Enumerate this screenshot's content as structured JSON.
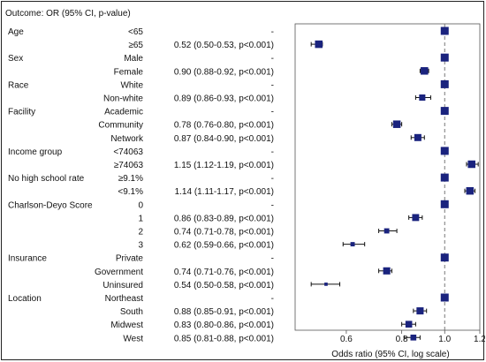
{
  "chart_data": {
    "type": "forest",
    "header": "Outcome: OR (95% CI, p-value)",
    "xlabel": "Odds ratio (95% CI, log scale)",
    "x_scale": "log",
    "xlim": [
      0.46,
      1.2
    ],
    "xticks": [
      0.6,
      0.8,
      1.0,
      1.2
    ],
    "xtick_labels": [
      "0.6",
      "0.8",
      "1.0",
      "1.2"
    ],
    "reference_line": 1.0,
    "reference_style": "dashed",
    "marker_color": "#1a237e",
    "groups": [
      {
        "name": "Age",
        "rows": [
          {
            "level": "<65",
            "text": "-",
            "or": 1.0,
            "lo": 1.0,
            "hi": 1.0,
            "reference": true
          },
          {
            "level": "≥65",
            "text": "0.52 (0.50-0.53, p<0.001)",
            "or": 0.52,
            "lo": 0.5,
            "hi": 0.53
          }
        ]
      },
      {
        "name": "Sex",
        "rows": [
          {
            "level": "Male",
            "text": "-",
            "or": 1.0,
            "lo": 1.0,
            "hi": 1.0,
            "reference": true
          },
          {
            "level": "Female",
            "text": "0.90 (0.88-0.92, p<0.001)",
            "or": 0.9,
            "lo": 0.88,
            "hi": 0.92
          }
        ]
      },
      {
        "name": "Race",
        "rows": [
          {
            "level": "White",
            "text": "-",
            "or": 1.0,
            "lo": 1.0,
            "hi": 1.0,
            "reference": true
          },
          {
            "level": "Non-white",
            "text": "0.89 (0.86-0.93, p<0.001)",
            "or": 0.89,
            "lo": 0.86,
            "hi": 0.93
          }
        ]
      },
      {
        "name": "Facility",
        "rows": [
          {
            "level": "Academic",
            "text": "-",
            "or": 1.0,
            "lo": 1.0,
            "hi": 1.0,
            "reference": true
          },
          {
            "level": "Community",
            "text": "0.78 (0.76-0.80, p<0.001)",
            "or": 0.78,
            "lo": 0.76,
            "hi": 0.8
          },
          {
            "level": "Network",
            "text": "0.87 (0.84-0.90, p<0.001)",
            "or": 0.87,
            "lo": 0.84,
            "hi": 0.9
          }
        ]
      },
      {
        "name": "Income group",
        "rows": [
          {
            "level": "<74063",
            "text": "-",
            "or": 1.0,
            "lo": 1.0,
            "hi": 1.0,
            "reference": true
          },
          {
            "level": "≥74063",
            "text": "1.15 (1.12-1.19, p<0.001)",
            "or": 1.15,
            "lo": 1.12,
            "hi": 1.19
          }
        ]
      },
      {
        "name": "No high school rate",
        "rows": [
          {
            "level": "≥9.1%",
            "text": "-",
            "or": 1.0,
            "lo": 1.0,
            "hi": 1.0,
            "reference": true
          },
          {
            "level": "<9.1%",
            "text": "1.14 (1.11-1.17, p<0.001)",
            "or": 1.14,
            "lo": 1.11,
            "hi": 1.17
          }
        ]
      },
      {
        "name": "Charlson-Deyo Score",
        "rows": [
          {
            "level": "0",
            "text": "-",
            "or": 1.0,
            "lo": 1.0,
            "hi": 1.0,
            "reference": true
          },
          {
            "level": "1",
            "text": "0.86 (0.83-0.89, p<0.001)",
            "or": 0.86,
            "lo": 0.83,
            "hi": 0.89
          },
          {
            "level": "2",
            "text": "0.74 (0.71-0.78, p<0.001)",
            "or": 0.74,
            "lo": 0.71,
            "hi": 0.78
          },
          {
            "level": "3",
            "text": "0.62 (0.59-0.66, p<0.001)",
            "or": 0.62,
            "lo": 0.59,
            "hi": 0.66
          }
        ]
      },
      {
        "name": "Insurance",
        "rows": [
          {
            "level": "Private",
            "text": "-",
            "or": 1.0,
            "lo": 1.0,
            "hi": 1.0,
            "reference": true
          },
          {
            "level": "Government",
            "text": "0.74 (0.71-0.76, p<0.001)",
            "or": 0.74,
            "lo": 0.71,
            "hi": 0.76
          },
          {
            "level": "Uninsured",
            "text": "0.54 (0.50-0.58, p<0.001)",
            "or": 0.54,
            "lo": 0.5,
            "hi": 0.58
          }
        ]
      },
      {
        "name": "Location",
        "rows": [
          {
            "level": "Northeast",
            "text": "-",
            "or": 1.0,
            "lo": 1.0,
            "hi": 1.0,
            "reference": true
          },
          {
            "level": "South",
            "text": "0.88 (0.85-0.91, p<0.001)",
            "or": 0.88,
            "lo": 0.85,
            "hi": 0.91
          },
          {
            "level": "Midwest",
            "text": "0.83 (0.80-0.86, p<0.001)",
            "or": 0.83,
            "lo": 0.8,
            "hi": 0.86
          },
          {
            "level": "West",
            "text": "0.85 (0.81-0.88, p<0.001)",
            "or": 0.85,
            "lo": 0.81,
            "hi": 0.88
          }
        ]
      }
    ]
  }
}
